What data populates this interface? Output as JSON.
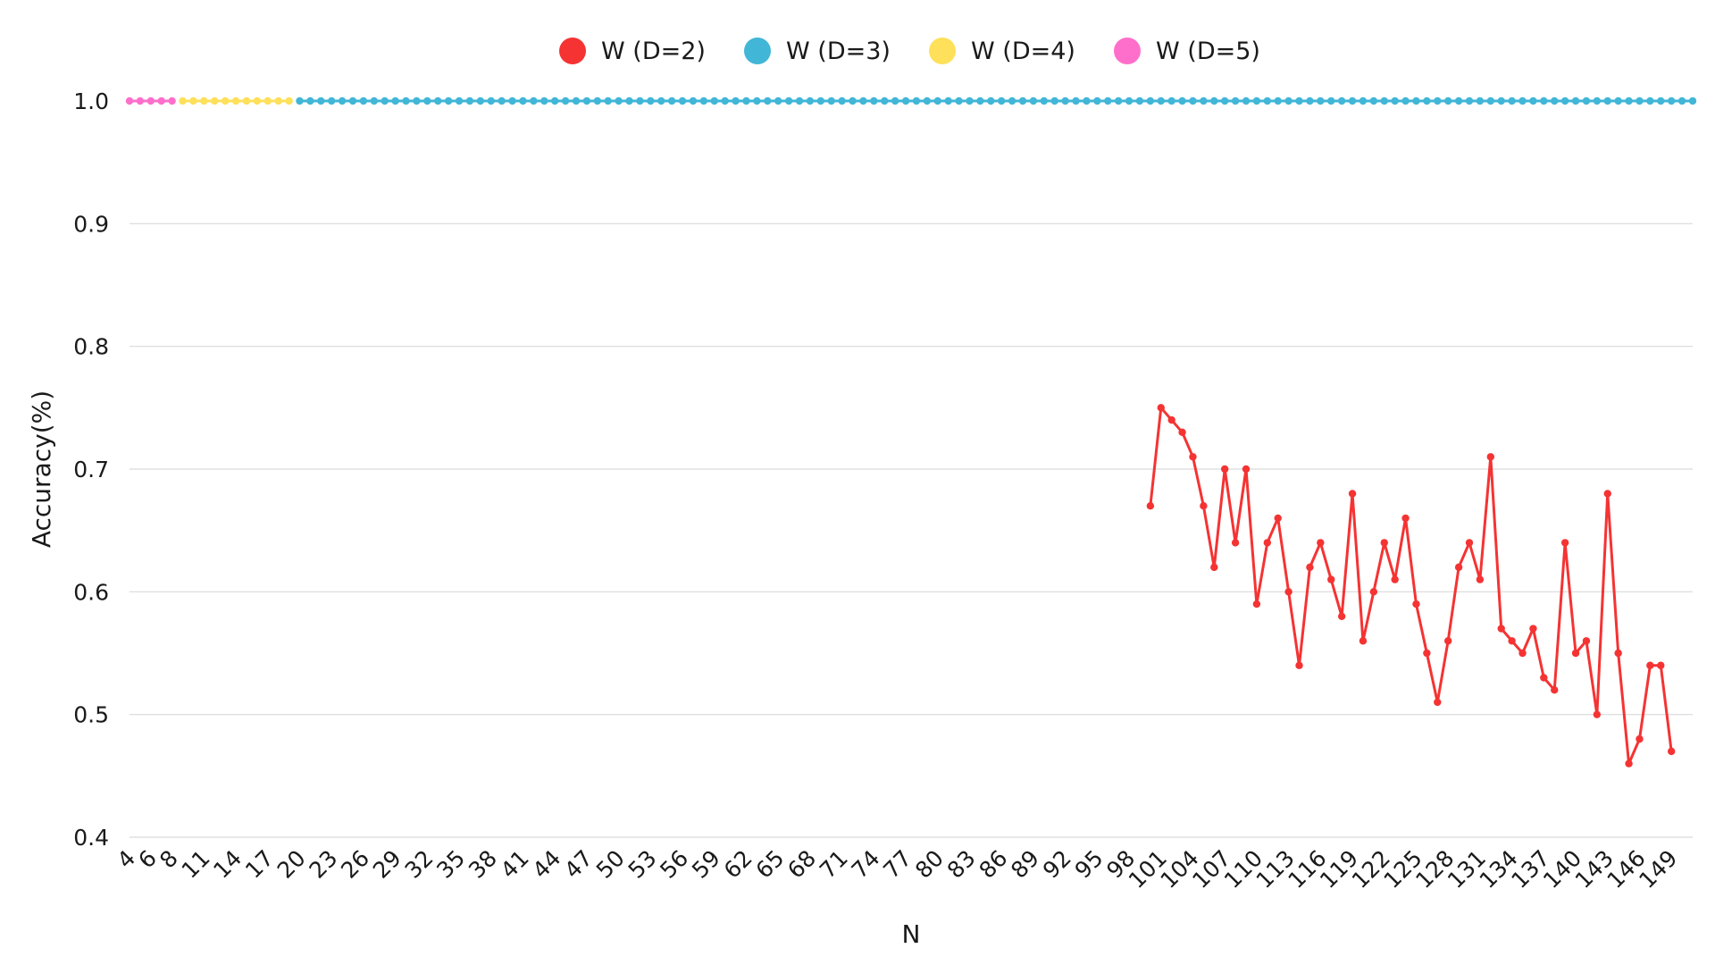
{
  "chart_data": {
    "type": "line",
    "xlabel": "N",
    "ylabel": "Accuracy(%)",
    "ylim": [
      0.4,
      1.0
    ],
    "yticks": [
      "0.4",
      "0.5",
      "0.6",
      "0.7",
      "0.8",
      "0.9",
      "1.0"
    ],
    "x_categories": [
      "4",
      "5",
      "6",
      "7",
      "8",
      "9",
      "10",
      "11",
      "12",
      "13",
      "14",
      "15",
      "16",
      "17",
      "18",
      "19",
      "20",
      "21",
      "22",
      "23",
      "24",
      "25",
      "26",
      "27",
      "28",
      "29",
      "30",
      "31",
      "32",
      "33",
      "34",
      "35",
      "36",
      "37",
      "38",
      "39",
      "40",
      "41",
      "42",
      "43",
      "44",
      "45",
      "46",
      "47",
      "48",
      "49",
      "50",
      "51",
      "52",
      "53",
      "54",
      "55",
      "56",
      "57",
      "58",
      "59",
      "60",
      "61",
      "62",
      "63",
      "64",
      "65",
      "66",
      "67",
      "68",
      "69",
      "70",
      "71",
      "72",
      "73",
      "74",
      "75",
      "76",
      "77",
      "78",
      "79",
      "80",
      "81",
      "82",
      "83",
      "84",
      "85",
      "86",
      "87",
      "88",
      "89",
      "90",
      "91",
      "92",
      "93",
      "94",
      "95",
      "96",
      "97",
      "98",
      "99",
      "100",
      "101",
      "102",
      "103",
      "104",
      "105",
      "106",
      "107",
      "108",
      "109",
      "110",
      "111",
      "112",
      "113",
      "114",
      "115",
      "116",
      "117",
      "118",
      "119",
      "120",
      "121",
      "122",
      "123",
      "124",
      "125",
      "126",
      "127",
      "128",
      "129",
      "130",
      "131",
      "132",
      "133",
      "134",
      "135",
      "136",
      "137",
      "138",
      "139",
      "140",
      "141",
      "142",
      "143",
      "144",
      "145",
      "146",
      "147",
      "148",
      "149",
      "150",
      "151"
    ],
    "x_tick_labels": [
      "4",
      "6",
      "8",
      "11",
      "14",
      "17",
      "20",
      "23",
      "26",
      "29",
      "32",
      "35",
      "38",
      "41",
      "44",
      "47",
      "50",
      "53",
      "56",
      "59",
      "62",
      "65",
      "68",
      "71",
      "74",
      "77",
      "80",
      "83",
      "86",
      "89",
      "92",
      "95",
      "98",
      "101",
      "104",
      "107",
      "110",
      "113",
      "116",
      "119",
      "122",
      "125",
      "128",
      "131",
      "134",
      "137",
      "140",
      "143",
      "146",
      "149"
    ],
    "grid": "horizontal",
    "legend_position": "top-center",
    "series": [
      {
        "name": "W (D=2)",
        "color": "#f53333",
        "line": true,
        "x": [
          100,
          101,
          102,
          103,
          104,
          105,
          106,
          107,
          108,
          109,
          110,
          111,
          112,
          113,
          114,
          115,
          116,
          117,
          118,
          119,
          120,
          121,
          122,
          123,
          124,
          125,
          126,
          127,
          128,
          129,
          130,
          131,
          132,
          133,
          134,
          135,
          136,
          137,
          138,
          139,
          140,
          141,
          142,
          143,
          144,
          145,
          146,
          147,
          148,
          149
        ],
        "y": [
          0.67,
          0.75,
          0.74,
          0.73,
          0.71,
          0.67,
          0.62,
          0.7,
          0.64,
          0.7,
          0.59,
          0.64,
          0.66,
          0.6,
          0.54,
          0.62,
          0.64,
          0.61,
          0.58,
          0.68,
          0.56,
          0.6,
          0.64,
          0.61,
          0.66,
          0.59,
          0.55,
          0.51,
          0.56,
          0.62,
          0.64,
          0.61,
          0.71,
          0.57,
          0.56,
          0.55,
          0.57,
          0.53,
          0.52,
          0.64,
          0.55,
          0.56,
          0.5,
          0.68,
          0.55,
          0.46,
          0.48,
          0.54,
          0.54,
          0.47
        ]
      },
      {
        "name": "W (D=3)",
        "color": "#41b6d7",
        "line": true,
        "x_from": 20,
        "x_to": 151,
        "constant_y": 1.0
      },
      {
        "name": "W (D=4)",
        "color": "#fee05a",
        "line": true,
        "x_from": 9,
        "x_to": 19,
        "constant_y": 1.0
      },
      {
        "name": "W (D=5)",
        "color": "#fe6fcb",
        "line": true,
        "x_from": 4,
        "x_to": 8,
        "constant_y": 1.0
      }
    ]
  }
}
